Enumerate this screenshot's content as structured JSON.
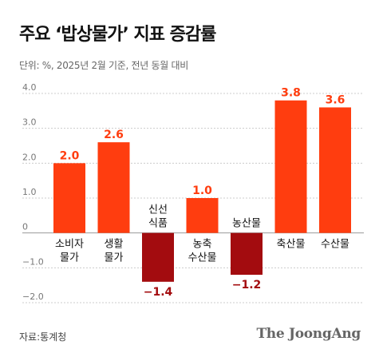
{
  "title": "주요 ‘밥상물가’ 지표 증감률",
  "subtitle": "단위: %, 2025년 2월 기준, 전년 동월 대비",
  "source": "자료:통계청",
  "brand": "The JoongAng",
  "colors": {
    "positive": "#ff3d0f",
    "negative": "#a30c0f",
    "positive_label": "#ff3d0f",
    "negative_label": "#a30c0f",
    "grid": "#cccccc",
    "axis_text": "#777777"
  },
  "chart_data": {
    "type": "bar",
    "categories": [
      "소비자\n물가",
      "생활\n물가",
      "신선\n식품",
      "농축\n수산물",
      "농산물",
      "축산물",
      "수산물"
    ],
    "values": [
      2.0,
      2.6,
      -1.4,
      1.0,
      -1.2,
      3.8,
      3.6
    ],
    "value_labels": [
      "2.0",
      "2.6",
      "−1.4",
      "1.0",
      "−1.2",
      "3.8",
      "3.6"
    ],
    "y_ticks": [
      "4.0",
      "3.0",
      "2.0",
      "1.0",
      "0",
      "−1.0",
      "−2.0"
    ],
    "y_tick_values": [
      4,
      3,
      2,
      1,
      0,
      -1,
      -2
    ],
    "ylim": [
      -2,
      4
    ],
    "grid": true
  }
}
